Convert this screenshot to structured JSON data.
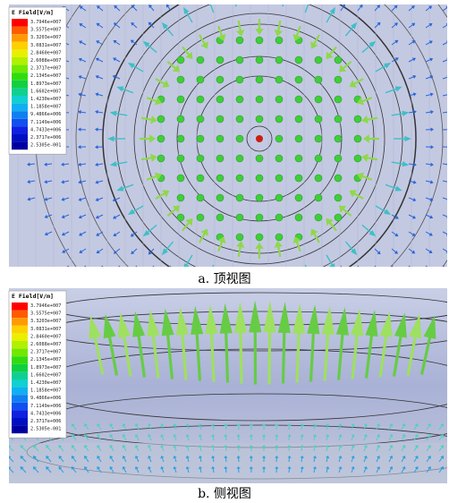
{
  "figures": [
    {
      "legend": {
        "title": "E Field[V/m]",
        "labels": [
          "3.7946e+007",
          "3.5575e+007",
          "3.3203e+007",
          "3.0831e+007",
          "2.8460e+007",
          "2.6088e+007",
          "2.3717e+007",
          "2.1345e+007",
          "1.8973e+007",
          "1.6602e+007",
          "1.4230e+007",
          "1.1858e+007",
          "9.4866e+006",
          "7.1149e+006",
          "4.7433e+006",
          "2.3717e+006",
          "2.5305e-001"
        ]
      },
      "caption": "a. 顶视图"
    },
    {
      "legend": {
        "title": "E Field[V/m]",
        "labels": [
          "3.7946e+007",
          "3.5575e+007",
          "3.3203e+007",
          "3.0831e+007",
          "2.8460e+007",
          "2.6088e+007",
          "2.3717e+007",
          "2.1345e+007",
          "1.8973e+007",
          "1.6602e+007",
          "1.4230e+007",
          "1.1858e+007",
          "9.4866e+006",
          "7.1149e+006",
          "4.7433e+006",
          "2.3717e+006",
          "2.5305e-001"
        ]
      },
      "caption": "b. 侧视图"
    }
  ]
}
